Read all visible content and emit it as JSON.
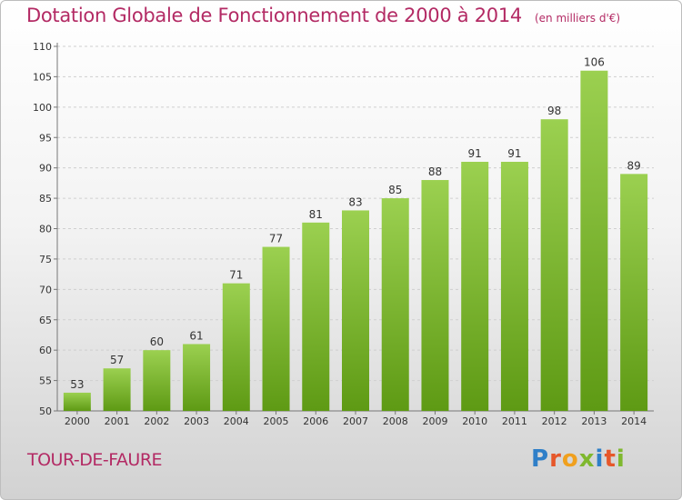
{
  "header": {
    "title": "Dotation Globale de Fonctionnement de 2000 à 2014",
    "subtitle": "(en milliers d'€)"
  },
  "commune": "TOUR-DE-FAURE",
  "logo": {
    "text": "Proxiti",
    "letters": [
      {
        "ch": "P",
        "color": "#2f7fc8"
      },
      {
        "ch": "r",
        "color": "#e6572a"
      },
      {
        "ch": "o",
        "color": "#f0a01e"
      },
      {
        "ch": "x",
        "color": "#7fb82e"
      },
      {
        "ch": "i",
        "color": "#2f7fc8"
      },
      {
        "ch": "t",
        "color": "#e6572a"
      },
      {
        "ch": "i",
        "color": "#7fb82e"
      }
    ]
  },
  "colors": {
    "accent": "#b32a64",
    "bar_top": "#9bd050",
    "bar_bottom": "#5e9a14",
    "axis_text": "#333333"
  },
  "chart_data": {
    "type": "bar",
    "categories": [
      "2000",
      "2001",
      "2002",
      "2003",
      "2004",
      "2005",
      "2006",
      "2007",
      "2008",
      "2009",
      "2010",
      "2011",
      "2012",
      "2013",
      "2014"
    ],
    "values": [
      53,
      57,
      60,
      61,
      71,
      77,
      81,
      83,
      85,
      88,
      91,
      91,
      98,
      106,
      89
    ],
    "ylim": [
      50,
      110
    ],
    "yticks": [
      50,
      55,
      60,
      65,
      70,
      75,
      80,
      85,
      90,
      95,
      100,
      105,
      110
    ],
    "grid": true,
    "data_labels": true
  }
}
